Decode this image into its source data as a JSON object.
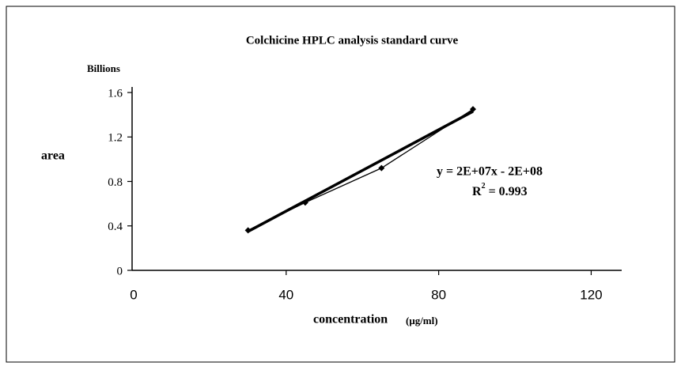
{
  "chart_data": {
    "type": "line",
    "title": "Colchicine HPLC analysis standard curve",
    "y_unit": "Billions",
    "ylabel": "area",
    "xlabel": "concentration",
    "xlabel_unit": "(μg/ml)",
    "x": [
      30,
      45,
      65,
      89
    ],
    "values": [
      0.36,
      0.61,
      0.92,
      1.45
    ],
    "color": "#000000",
    "trendline": {
      "x": [
        30,
        89
      ],
      "values": [
        0.35,
        1.43
      ]
    },
    "equation": "y = 2E+07x - 2E+08",
    "r2": {
      "text": "R",
      "sup": "2",
      "rest": " = 0.993"
    },
    "xlim": [
      0,
      128
    ],
    "ylim": [
      0,
      1.65
    ],
    "xticks": [
      0,
      40,
      80,
      120
    ],
    "yticks": [
      0,
      0.4,
      0.8,
      1.2,
      1.6
    ],
    "grid": false
  }
}
